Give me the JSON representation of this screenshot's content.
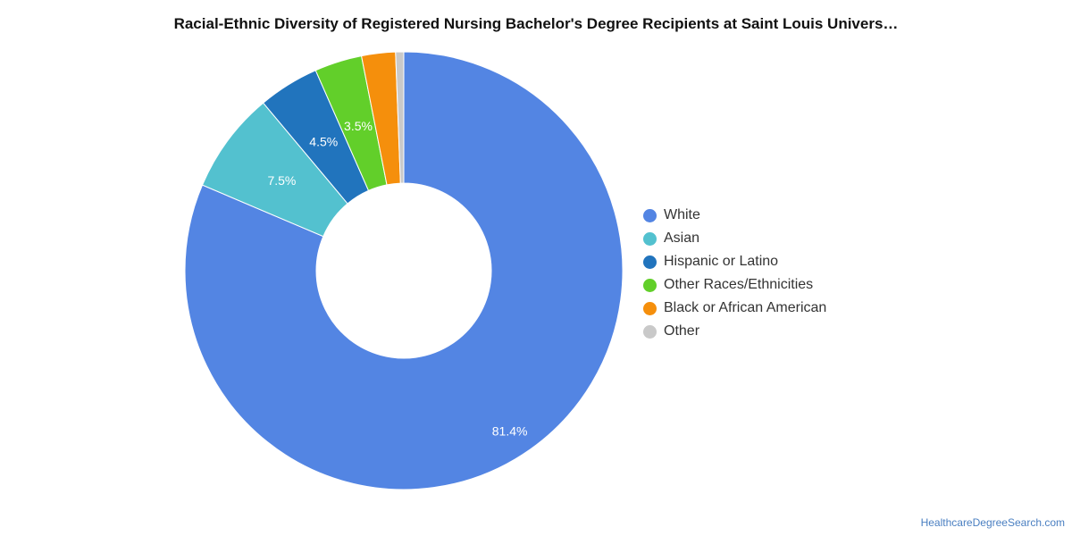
{
  "chart_data": {
    "type": "pie",
    "title": "Racial-Ethnic Diversity of Registered Nursing Bachelor's Degree Recipients at Saint Louis Univers…",
    "categories": [
      "White",
      "Asian",
      "Hispanic or Latino",
      "Other Races/Ethnicities",
      "Black or African American",
      "Other"
    ],
    "values": [
      81.4,
      7.5,
      4.5,
      3.5,
      2.5,
      0.6
    ],
    "data_labels": [
      "81.4%",
      "7.5%",
      "4.5%",
      "3.5%",
      "",
      ""
    ],
    "colors": [
      "#5385e3",
      "#53c1cf",
      "#2174bd",
      "#62cf2a",
      "#f58f0c",
      "#c9c9c9"
    ],
    "donut": true,
    "legend_position": "right"
  },
  "source": "HealthcareDegreeSearch.com"
}
